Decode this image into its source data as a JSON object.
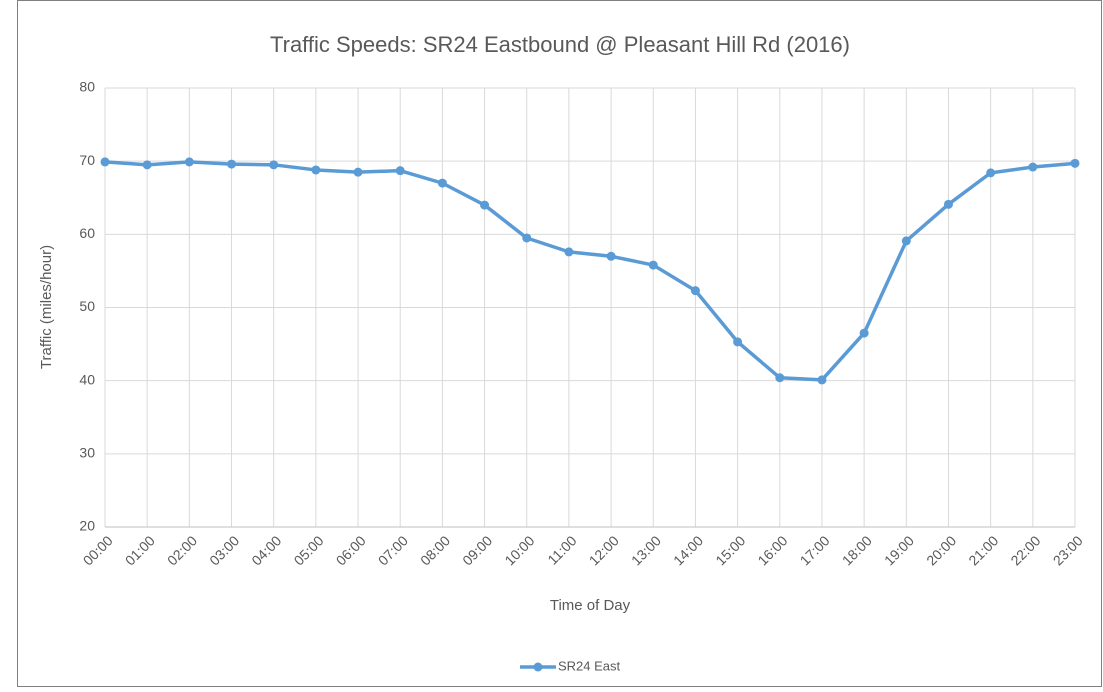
{
  "chart_data": {
    "type": "line",
    "title": "Traffic Speeds: SR24 Eastbound @  Pleasant Hill Rd (2016)",
    "x_label": "Time of Day",
    "y_label": "Traffic (miles/hour)",
    "categories": [
      "00:00",
      "01:00",
      "02:00",
      "03:00",
      "04:00",
      "05:00",
      "06:00",
      "07:00",
      "08:00",
      "09:00",
      "10:00",
      "11:00",
      "12:00",
      "13:00",
      "14:00",
      "15:00",
      "16:00",
      "17:00",
      "18:00",
      "19:00",
      "20:00",
      "21:00",
      "22:00",
      "23:00"
    ],
    "series": [
      {
        "name": "SR24 East",
        "color": "#5b9bd5",
        "values": [
          69.9,
          69.5,
          69.9,
          69.6,
          69.5,
          68.8,
          68.5,
          68.7,
          67.0,
          64.0,
          59.5,
          57.6,
          57.0,
          55.8,
          52.3,
          45.3,
          40.4,
          40.1,
          46.5,
          59.1,
          64.1,
          68.4,
          69.2,
          69.7
        ]
      }
    ],
    "ylim": [
      20,
      80
    ],
    "yticks": [
      20,
      30,
      40,
      50,
      60,
      70,
      80
    ],
    "grid": true,
    "legend": "bottom"
  }
}
